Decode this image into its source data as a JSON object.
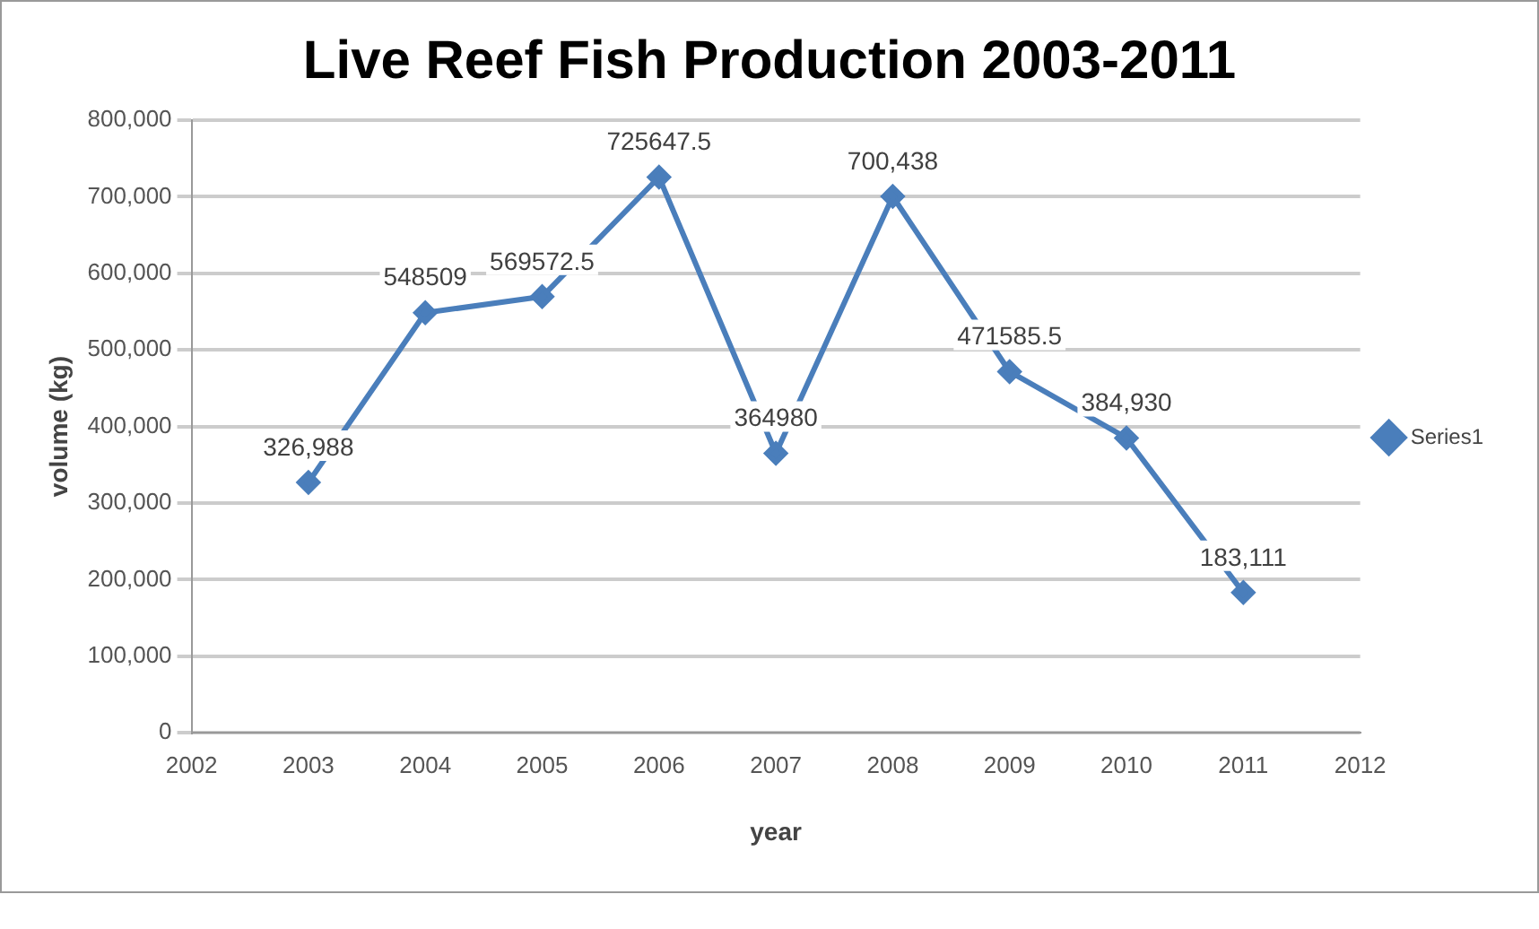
{
  "chart_data": {
    "type": "line",
    "title": "Live Reef Fish Production 2003-2011",
    "xlabel": "year",
    "ylabel": "volume (kg)",
    "x": [
      2003,
      2004,
      2005,
      2006,
      2007,
      2008,
      2009,
      2010,
      2011
    ],
    "series": [
      {
        "name": "Series1",
        "color": "#4a7ebb",
        "values": [
          326988,
          548509,
          569572.5,
          725647.5,
          364980,
          700438,
          471585.5,
          384930,
          183111
        ],
        "value_labels": [
          "326,988",
          "548509",
          "569572.5",
          "725647.5",
          "364980",
          "700,438",
          "471585.5",
          "384,930",
          "183,111"
        ]
      }
    ],
    "xlim": [
      2002,
      2012
    ],
    "xticks": [
      2002,
      2003,
      2004,
      2005,
      2006,
      2007,
      2008,
      2009,
      2010,
      2011,
      2012
    ],
    "ylim": [
      0,
      800000
    ],
    "yticks": [
      {
        "value": 0,
        "label": "0"
      },
      {
        "value": 100000,
        "label": "100,000"
      },
      {
        "value": 200000,
        "label": "200,000"
      },
      {
        "value": 300000,
        "label": "300,000"
      },
      {
        "value": 400000,
        "label": "400,000"
      },
      {
        "value": 500000,
        "label": "500,000"
      },
      {
        "value": 600000,
        "label": "600,000"
      },
      {
        "value": 700000,
        "label": "700,000"
      },
      {
        "value": 800000,
        "label": "800,000"
      }
    ],
    "grid": "y",
    "legend": "right",
    "marker": "diamond",
    "line_style": "solid"
  }
}
